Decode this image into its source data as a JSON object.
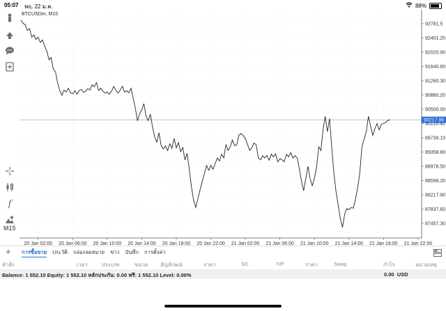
{
  "status_bar": {
    "time": "05:07",
    "date": "พฤ. 22 ม.ค.",
    "battery": "88%"
  },
  "chart": {
    "symbol": "BTCUSDm, M15",
    "current_price": "90217.99",
    "price_label_bg": "#2b6cd6",
    "line_color": "#222222",
    "grid": true
  },
  "chart_data": {
    "type": "line",
    "title": "BTCUSDm, M15",
    "y_ticks": [
      "92781.5",
      "92401.20",
      "92020.90",
      "91640.60",
      "91260.30",
      "90880.20",
      "90500.00",
      "90119.40",
      "89739.10",
      "89358.80",
      "88978.50",
      "88598.20",
      "88217.90",
      "87837.60",
      "87457.30"
    ],
    "x_ticks": [
      "20 Jan 02:00",
      "20 Jan 06:00",
      "20 Jan 10:00",
      "20 Jan 14:00",
      "20 Jan 18:00",
      "20 Jan 22:00",
      "21 Jan 02:00",
      "21 Jan 06:00",
      "21 Jan 10:00",
      "21 Jan 14:00",
      "21 Jan 18:00",
      "21 Jan 22:00"
    ],
    "ylim": [
      87300,
      92900
    ],
    "x_range": [
      "20 Jan 00:00",
      "21 Jan 22:15"
    ],
    "current_price": 90217.99,
    "points": [
      [
        "20 Jan 00:00",
        92880
      ],
      [
        "20 Jan 00:15",
        92790
      ],
      [
        "20 Jan 00:30",
        92750
      ],
      [
        "20 Jan 00:45",
        92600
      ],
      [
        "20 Jan 01:00",
        92650
      ],
      [
        "20 Jan 01:15",
        92420
      ],
      [
        "20 Jan 01:30",
        92480
      ],
      [
        "20 Jan 01:45",
        92360
      ],
      [
        "20 Jan 02:00",
        92420
      ],
      [
        "20 Jan 02:15",
        92280
      ],
      [
        "20 Jan 02:30",
        92350
      ],
      [
        "20 Jan 02:45",
        92180
      ],
      [
        "20 Jan 03:00",
        92050
      ],
      [
        "20 Jan 03:15",
        91820
      ],
      [
        "20 Jan 03:30",
        91880
      ],
      [
        "20 Jan 03:45",
        91560
      ],
      [
        "20 Jan 04:00",
        91500
      ],
      [
        "20 Jan 04:15",
        91200
      ],
      [
        "20 Jan 04:30",
        91000
      ],
      [
        "20 Jan 04:45",
        90870
      ],
      [
        "20 Jan 05:00",
        91010
      ],
      [
        "20 Jan 05:15",
        90960
      ],
      [
        "20 Jan 05:30",
        91060
      ],
      [
        "20 Jan 05:45",
        90940
      ],
      [
        "20 Jan 06:00",
        90910
      ],
      [
        "20 Jan 06:15",
        90990
      ],
      [
        "20 Jan 06:30",
        90900
      ],
      [
        "20 Jan 06:45",
        91000
      ],
      [
        "20 Jan 07:00",
        91030
      ],
      [
        "20 Jan 07:15",
        90950
      ],
      [
        "20 Jan 07:30",
        90980
      ],
      [
        "20 Jan 07:45",
        91050
      ],
      [
        "20 Jan 08:00",
        91010
      ],
      [
        "20 Jan 08:15",
        91150
      ],
      [
        "20 Jan 08:30",
        91100
      ],
      [
        "20 Jan 08:45",
        91210
      ],
      [
        "20 Jan 09:00",
        91000
      ],
      [
        "20 Jan 09:15",
        91060
      ],
      [
        "20 Jan 09:30",
        90980
      ],
      [
        "20 Jan 09:45",
        90930
      ],
      [
        "20 Jan 10:00",
        90960
      ],
      [
        "20 Jan 10:15",
        90900
      ],
      [
        "20 Jan 10:30",
        90980
      ],
      [
        "20 Jan 10:45",
        91110
      ],
      [
        "20 Jan 11:00",
        91000
      ],
      [
        "20 Jan 11:15",
        90930
      ],
      [
        "20 Jan 11:30",
        91010
      ],
      [
        "20 Jan 11:45",
        91110
      ],
      [
        "20 Jan 12:00",
        90960
      ],
      [
        "20 Jan 12:15",
        90990
      ],
      [
        "20 Jan 12:30",
        90940
      ],
      [
        "20 Jan 12:45",
        91060
      ],
      [
        "20 Jan 13:00",
        90800
      ],
      [
        "20 Jan 13:15",
        90530
      ],
      [
        "20 Jan 13:30",
        90190
      ],
      [
        "20 Jan 13:45",
        90380
      ],
      [
        "20 Jan 14:00",
        90480
      ],
      [
        "20 Jan 14:15",
        90650
      ],
      [
        "20 Jan 14:30",
        90310
      ],
      [
        "20 Jan 14:45",
        90200
      ],
      [
        "20 Jan 15:00",
        90370
      ],
      [
        "20 Jan 15:15",
        90020
      ],
      [
        "20 Jan 15:30",
        89760
      ],
      [
        "20 Jan 15:45",
        89620
      ],
      [
        "20 Jan 16:00",
        89870
      ],
      [
        "20 Jan 16:15",
        89530
      ],
      [
        "20 Jan 16:30",
        89440
      ],
      [
        "20 Jan 16:45",
        89520
      ],
      [
        "20 Jan 17:00",
        89400
      ],
      [
        "20 Jan 17:15",
        89580
      ],
      [
        "20 Jan 17:30",
        89460
      ],
      [
        "20 Jan 17:45",
        89720
      ],
      [
        "20 Jan 18:00",
        89470
      ],
      [
        "20 Jan 18:15",
        89610
      ],
      [
        "20 Jan 18:30",
        89370
      ],
      [
        "20 Jan 18:45",
        89480
      ],
      [
        "20 Jan 19:00",
        89150
      ],
      [
        "20 Jan 19:15",
        89320
      ],
      [
        "20 Jan 19:30",
        88900
      ],
      [
        "20 Jan 19:45",
        88430
      ],
      [
        "20 Jan 20:00",
        88080
      ],
      [
        "20 Jan 20:15",
        87880
      ],
      [
        "20 Jan 20:30",
        88120
      ],
      [
        "20 Jan 20:45",
        88350
      ],
      [
        "20 Jan 21:00",
        88580
      ],
      [
        "20 Jan 21:15",
        88780
      ],
      [
        "20 Jan 21:30",
        89000
      ],
      [
        "20 Jan 21:45",
        88870
      ],
      [
        "20 Jan 22:00",
        89000
      ],
      [
        "20 Jan 22:15",
        88900
      ],
      [
        "20 Jan 22:30",
        89050
      ],
      [
        "20 Jan 22:45",
        89200
      ],
      [
        "20 Jan 23:00",
        89120
      ],
      [
        "20 Jan 23:15",
        89300
      ],
      [
        "20 Jan 23:30",
        89200
      ],
      [
        "20 Jan 23:45",
        89560
      ],
      [
        "21 Jan 00:00",
        89400
      ],
      [
        "21 Jan 00:15",
        89500
      ],
      [
        "21 Jan 00:30",
        89680
      ],
      [
        "21 Jan 00:45",
        89530
      ],
      [
        "21 Jan 01:00",
        89550
      ],
      [
        "21 Jan 01:15",
        89810
      ],
      [
        "21 Jan 01:30",
        89850
      ],
      [
        "21 Jan 01:45",
        89800
      ],
      [
        "21 Jan 02:00",
        89720
      ],
      [
        "21 Jan 02:15",
        89560
      ],
      [
        "21 Jan 02:30",
        89400
      ],
      [
        "21 Jan 02:45",
        89480
      ],
      [
        "21 Jan 03:00",
        89600
      ],
      [
        "21 Jan 03:15",
        89550
      ],
      [
        "21 Jan 03:30",
        89200
      ],
      [
        "21 Jan 03:45",
        89150
      ],
      [
        "21 Jan 04:00",
        89260
      ],
      [
        "21 Jan 04:15",
        89200
      ],
      [
        "21 Jan 04:30",
        89270
      ],
      [
        "21 Jan 04:45",
        89140
      ],
      [
        "21 Jan 05:00",
        89300
      ],
      [
        "21 Jan 05:15",
        89230
      ],
      [
        "21 Jan 05:30",
        89310
      ],
      [
        "21 Jan 05:45",
        89100
      ],
      [
        "21 Jan 06:00",
        89180
      ],
      [
        "21 Jan 06:15",
        89150
      ],
      [
        "21 Jan 06:30",
        89100
      ],
      [
        "21 Jan 06:45",
        89300
      ],
      [
        "21 Jan 07:00",
        89230
      ],
      [
        "21 Jan 07:15",
        89340
      ],
      [
        "21 Jan 07:30",
        89200
      ],
      [
        "21 Jan 07:45",
        89260
      ],
      [
        "21 Jan 08:00",
        89200
      ],
      [
        "21 Jan 08:15",
        88900
      ],
      [
        "21 Jan 08:30",
        88580
      ],
      [
        "21 Jan 08:45",
        88330
      ],
      [
        "21 Jan 09:00",
        88650
      ],
      [
        "21 Jan 09:15",
        88980
      ],
      [
        "21 Jan 09:30",
        88650
      ],
      [
        "21 Jan 09:45",
        88460
      ],
      [
        "21 Jan 10:00",
        88660
      ],
      [
        "21 Jan 10:15",
        88950
      ],
      [
        "21 Jan 10:30",
        89500
      ],
      [
        "21 Jan 10:45",
        89400
      ],
      [
        "21 Jan 11:00",
        89960
      ],
      [
        "21 Jan 11:15",
        90310
      ],
      [
        "21 Jan 11:30",
        89900
      ],
      [
        "21 Jan 11:45",
        90250
      ],
      [
        "21 Jan 12:00",
        89500
      ],
      [
        "21 Jan 12:15",
        88800
      ],
      [
        "21 Jan 12:30",
        88300
      ],
      [
        "21 Jan 12:45",
        87950
      ],
      [
        "21 Jan 13:00",
        87580
      ],
      [
        "21 Jan 13:15",
        87350
      ],
      [
        "21 Jan 13:30",
        87700
      ],
      [
        "21 Jan 13:45",
        87850
      ],
      [
        "21 Jan 14:00",
        87820
      ],
      [
        "21 Jan 14:15",
        87880
      ],
      [
        "21 Jan 14:30",
        87860
      ],
      [
        "21 Jan 14:45",
        88100
      ],
      [
        "21 Jan 15:00",
        88400
      ],
      [
        "21 Jan 15:15",
        88800
      ],
      [
        "21 Jan 15:30",
        89500
      ],
      [
        "21 Jan 15:45",
        89700
      ],
      [
        "21 Jan 16:00",
        89900
      ],
      [
        "21 Jan 16:15",
        90310
      ],
      [
        "21 Jan 16:30",
        90050
      ],
      [
        "21 Jan 16:45",
        89800
      ],
      [
        "21 Jan 17:00",
        89980
      ],
      [
        "21 Jan 17:15",
        90120
      ],
      [
        "21 Jan 17:30",
        89950
      ],
      [
        "21 Jan 17:45",
        90100
      ],
      [
        "21 Jan 18:00",
        90120
      ],
      [
        "21 Jan 18:15",
        90150
      ],
      [
        "21 Jan 18:30",
        90200
      ],
      [
        "21 Jan 18:45",
        90217.99
      ]
    ]
  },
  "bottom_tabs": {
    "tabs": [
      "การซื้อขาย",
      "ประวัติ",
      "กล่องจดหมาย",
      "ข่าว",
      "บันทึก",
      "การตั้งค่า"
    ],
    "active_index": 0
  },
  "columns": [
    "คำสั่ง",
    "เวลา",
    "ประเภท",
    "ขนาด",
    "สัญลักษณ์",
    "ราคา",
    "S/L",
    "T/P",
    "ราคา",
    "Swap",
    "กำไร",
    "หมายเหตุ"
  ],
  "account": {
    "balance_line": "Balance: 1 552.10 Equity: 1 552.10 หลักประกัน: 0.00 ฟรี: 1 552.10 Level: 0.00%",
    "profit": "0.00",
    "currency": "USD"
  },
  "icons": {
    "left_toolbar": [
      "tree-icon",
      "trade-icon",
      "chat-icon",
      "add-chart-icon",
      "crosshair-icon",
      "candles-icon",
      "indicators-icon",
      "objects-icon"
    ],
    "timeframe": "M15"
  }
}
